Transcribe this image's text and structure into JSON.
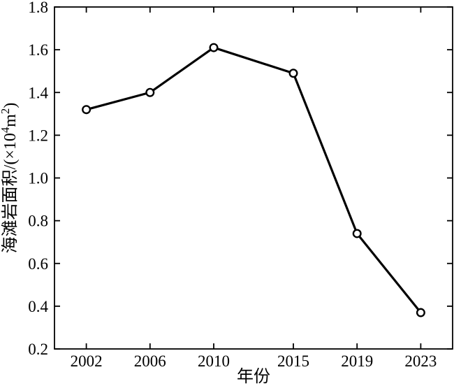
{
  "chart_data": {
    "type": "line",
    "title": "",
    "x": [
      2002,
      2006,
      2010,
      2015,
      2019,
      2023
    ],
    "series": [
      {
        "name": "海滩岩面积",
        "values": [
          1.32,
          1.4,
          1.61,
          1.49,
          0.74,
          0.37
        ]
      }
    ],
    "xlabel": "年份",
    "ylabel": "海滩岩面积/(×10⁴m²)",
    "ylabel_parts": [
      {
        "t": "海滩岩面积/(×10"
      },
      {
        "t": "4",
        "sup": true
      },
      {
        "t": "m"
      },
      {
        "t": "2",
        "sup": true
      },
      {
        "t": ")"
      }
    ],
    "xlim": [
      2000,
      2025
    ],
    "ylim": [
      0.2,
      1.8
    ],
    "xticks": [
      2002,
      2006,
      2010,
      2015,
      2019,
      2023
    ],
    "yticks": [
      0.2,
      0.4,
      0.6,
      0.8,
      1.0,
      1.2,
      1.4,
      1.6,
      1.8
    ],
    "ytick_decimals": 1,
    "grid": false,
    "legend": "none",
    "line_color": "#000000",
    "axis_color": "#000000",
    "marker": "open-circle",
    "marker_fill": "#ffffff",
    "background": "#ffffff"
  }
}
